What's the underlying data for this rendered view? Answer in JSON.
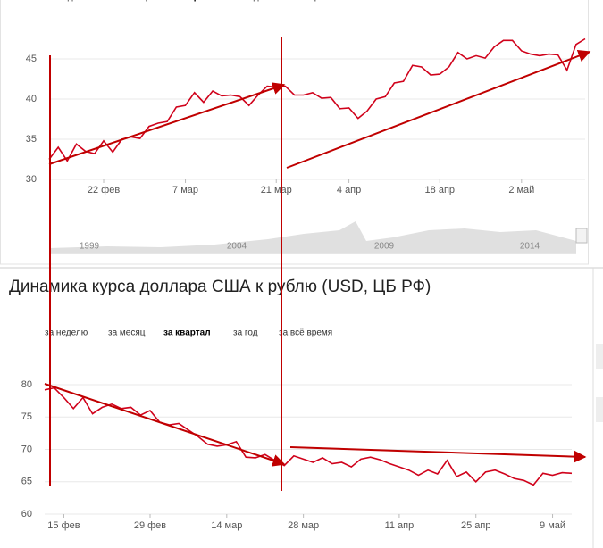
{
  "chart_data": [
    {
      "type": "line",
      "period_tabs": [
        "за неделю",
        "за месяц",
        "за квартал",
        "за год",
        "за всё время"
      ],
      "categories": [
        null,
        null,
        null,
        null,
        null,
        null,
        "22 фев",
        null,
        null,
        null,
        null,
        null,
        null,
        null,
        null,
        "7 мар",
        null,
        null,
        null,
        null,
        null,
        null,
        null,
        null,
        null,
        "21 мар",
        null,
        null,
        null,
        null,
        null,
        null,
        null,
        "4 апр",
        null,
        null,
        null,
        null,
        null,
        null,
        null,
        null,
        null,
        "18 апр",
        null,
        null,
        null,
        null,
        null,
        null,
        null,
        null,
        "2 май",
        null,
        null,
        null,
        null,
        null,
        null,
        null
      ],
      "values": [
        32.5,
        34,
        32.3,
        34.4,
        33.5,
        33.2,
        34.8,
        33.4,
        35,
        35.3,
        35.1,
        36.6,
        37,
        37.2,
        39,
        39.2,
        40.8,
        39.6,
        41,
        40.4,
        40.5,
        40.3,
        39.2,
        40.5,
        41.6,
        41.5,
        41.6,
        40.5,
        40.5,
        40.8,
        40.1,
        40.2,
        38.8,
        38.9,
        37.6,
        38.5,
        40,
        40.3,
        42,
        42.2,
        44.2,
        44,
        43,
        43.1,
        44,
        45.8,
        45,
        45.4,
        45.1,
        46.5,
        47.3,
        47.3,
        46,
        45.6,
        45.4,
        45.6,
        45.5,
        43.6,
        46.8,
        47.5
      ],
      "color": "#d0021b",
      "ylim": [
        30,
        45
      ],
      "yticks": [
        30,
        35,
        40,
        45
      ],
      "grid": true,
      "navigator_years": [
        "1999",
        "2004",
        "2009",
        "2014"
      ]
    },
    {
      "type": "line",
      "title": "Динамика курса доллара США к рублю (USD, ЦБ РФ)",
      "period_tabs": [
        "за неделю",
        "за месяц",
        "за квартал",
        "за год",
        "за всё время"
      ],
      "categories": [
        null,
        null,
        "15 фев",
        null,
        null,
        null,
        null,
        null,
        null,
        null,
        null,
        "29 фев",
        null,
        null,
        null,
        null,
        null,
        null,
        null,
        "14 мар",
        null,
        null,
        null,
        null,
        null,
        null,
        null,
        "28 мар",
        null,
        null,
        null,
        null,
        null,
        null,
        null,
        null,
        null,
        "11 апр",
        null,
        null,
        null,
        null,
        null,
        null,
        null,
        "25 апр",
        null,
        null,
        null,
        null,
        null,
        null,
        null,
        "9 май",
        null,
        null
      ],
      "values": [
        79.2,
        79.5,
        78,
        76.3,
        78,
        75.5,
        76.5,
        77,
        76.3,
        76.5,
        75.3,
        76,
        74.2,
        73.8,
        74,
        73,
        72,
        70.8,
        70.5,
        70.7,
        71.2,
        68.8,
        68.7,
        69.2,
        68.3,
        67.5,
        69,
        68.5,
        68,
        68.7,
        67.8,
        68,
        67.3,
        68.5,
        68.8,
        68.4,
        67.8,
        67.3,
        66.8,
        66,
        66.8,
        66.2,
        68.3,
        65.8,
        66.5,
        65,
        66.5,
        66.8,
        66.2,
        65.5,
        65.2,
        64.5,
        66.3,
        66,
        66.4,
        66.3
      ],
      "color": "#d0021b",
      "ylim": [
        60,
        80
      ],
      "yticks": [
        60,
        65,
        70,
        75,
        80
      ],
      "grid": true
    }
  ]
}
